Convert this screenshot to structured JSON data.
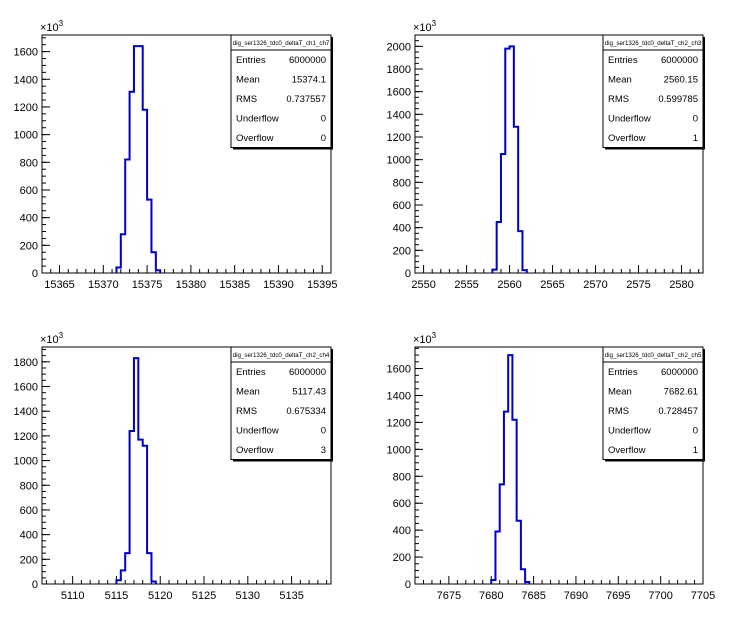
{
  "chart_data": [
    {
      "type": "bar",
      "histogram_name": "dig_ser1326_tdc0_deltaT_ch1_ch7",
      "multiplier": "10",
      "multiplier_exp": "3",
      "xlim": [
        15363,
        15396
      ],
      "ylim": [
        0,
        1720
      ],
      "xticks": [
        "15365",
        "15370",
        "15375",
        "15380",
        "15385",
        "15390",
        "15395"
      ],
      "yticks": [
        "0",
        "200",
        "400",
        "600",
        "800",
        "1000",
        "1200",
        "1400",
        "1600"
      ],
      "bin_width": 0.5,
      "bins": [
        [
          15371.5,
          40
        ],
        [
          15372,
          280
        ],
        [
          15372.5,
          820
        ],
        [
          15373,
          1310
        ],
        [
          15373.5,
          1640
        ],
        [
          15374,
          1640
        ],
        [
          15374.5,
          1180
        ],
        [
          15375,
          530
        ],
        [
          15375.5,
          150
        ],
        [
          15376,
          20
        ]
      ],
      "stats": [
        {
          "label": "Entries",
          "value": "6000000"
        },
        {
          "label": "Mean",
          "value": "15374.1"
        },
        {
          "label": "RMS",
          "value": "0.737557"
        },
        {
          "label": "Underflow",
          "value": "0"
        },
        {
          "label": "Overflow",
          "value": "0"
        }
      ]
    },
    {
      "type": "bar",
      "histogram_name": "dig_ser1326_tdc0_deltaT_ch2_ch3",
      "multiplier": "10",
      "multiplier_exp": "3",
      "xlim": [
        2549,
        2582.5
      ],
      "ylim": [
        0,
        2100
      ],
      "xticks": [
        "2550",
        "2555",
        "2560",
        "2565",
        "2570",
        "2575",
        "2580"
      ],
      "yticks": [
        "0",
        "200",
        "400",
        "600",
        "800",
        "1000",
        "1200",
        "1400",
        "1600",
        "1800",
        "2000"
      ],
      "bin_width": 0.5,
      "bins": [
        [
          2558,
          30
        ],
        [
          2558.5,
          450
        ],
        [
          2559,
          1050
        ],
        [
          2559.5,
          1980
        ],
        [
          2560,
          2000
        ],
        [
          2560.5,
          1290
        ],
        [
          2561,
          370
        ],
        [
          2561.5,
          25
        ]
      ],
      "stats": [
        {
          "label": "Entries",
          "value": "6000000"
        },
        {
          "label": "Mean",
          "value": "2560.15"
        },
        {
          "label": "RMS",
          "value": "0.599785"
        },
        {
          "label": "Underflow",
          "value": "0"
        },
        {
          "label": "Overflow",
          "value": "1"
        }
      ]
    },
    {
      "type": "bar",
      "histogram_name": "dig_ser1326_tdc0_deltaT_ch2_ch4",
      "multiplier": "10",
      "multiplier_exp": "3",
      "xlim": [
        5106.5,
        5139.5
      ],
      "ylim": [
        0,
        1920
      ],
      "xticks": [
        "5110",
        "5115",
        "5120",
        "5125",
        "5130",
        "5135"
      ],
      "yticks": [
        "0",
        "200",
        "400",
        "600",
        "800",
        "1000",
        "1200",
        "1400",
        "1600",
        "1800"
      ],
      "bin_width": 0.5,
      "bins": [
        [
          5115,
          30
        ],
        [
          5115.5,
          110
        ],
        [
          5116,
          250
        ],
        [
          5116.5,
          1240
        ],
        [
          5117,
          1830
        ],
        [
          5117.5,
          1170
        ],
        [
          5118,
          1120
        ],
        [
          5118.5,
          250
        ],
        [
          5119,
          20
        ]
      ],
      "stats": [
        {
          "label": "Entries",
          "value": "6000000"
        },
        {
          "label": "Mean",
          "value": "5117.43"
        },
        {
          "label": "RMS",
          "value": "0.675334"
        },
        {
          "label": "Underflow",
          "value": "0"
        },
        {
          "label": "Overflow",
          "value": "3"
        }
      ]
    },
    {
      "type": "bar",
      "histogram_name": "dig_ser1326_tdc0_deltaT_ch2_ch5",
      "multiplier": "10",
      "multiplier_exp": "3",
      "xlim": [
        7671,
        7705
      ],
      "ylim": [
        0,
        1760
      ],
      "xticks": [
        "7675",
        "7680",
        "7685",
        "7690",
        "7695",
        "7700",
        "7705"
      ],
      "yticks": [
        "0",
        "200",
        "400",
        "600",
        "800",
        "1000",
        "1200",
        "1400",
        "1600"
      ],
      "bin_width": 0.5,
      "bins": [
        [
          7680,
          30
        ],
        [
          7680.5,
          390
        ],
        [
          7681,
          740
        ],
        [
          7681.5,
          1280
        ],
        [
          7682,
          1700
        ],
        [
          7682.5,
          1220
        ],
        [
          7683,
          470
        ],
        [
          7683.5,
          110
        ],
        [
          7684,
          15
        ]
      ],
      "stats": [
        {
          "label": "Entries",
          "value": "6000000"
        },
        {
          "label": "Mean",
          "value": "7682.61"
        },
        {
          "label": "RMS",
          "value": "0.728457"
        },
        {
          "label": "Underflow",
          "value": "0"
        },
        {
          "label": "Overflow",
          "value": "1"
        }
      ]
    }
  ]
}
